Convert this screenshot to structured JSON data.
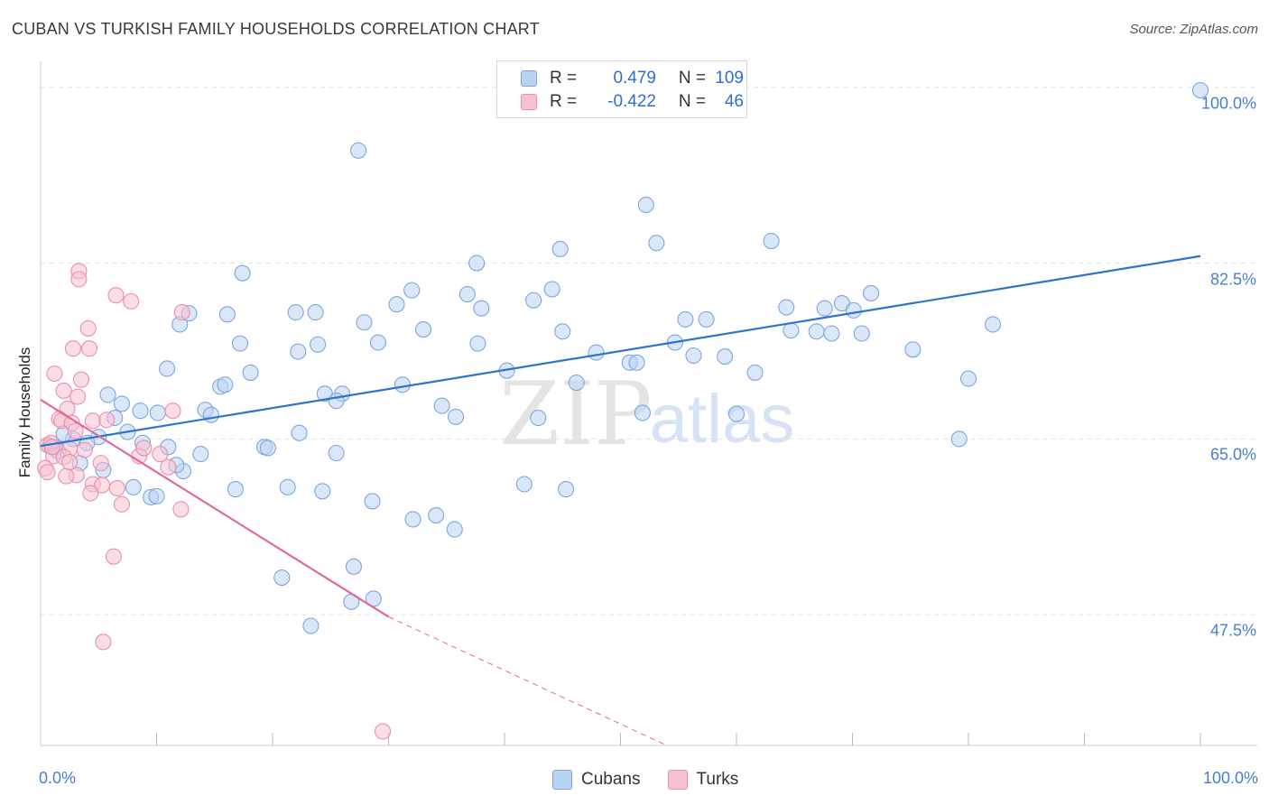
{
  "title": "CUBAN VS TURKISH FAMILY HOUSEHOLDS CORRELATION CHART",
  "source": "Source: ZipAtlas.com",
  "watermark": {
    "zip": "ZIP",
    "atlas": "atlas"
  },
  "legend_box": {
    "rows": [
      {
        "r_label": "R =",
        "r_value": "0.479",
        "n_label": "N =",
        "n_value": "109"
      },
      {
        "r_label": "R =",
        "r_value": "-0.422",
        "n_label": "N =",
        "n_value": "46"
      }
    ]
  },
  "colors": {
    "cubans_fill": "#b9d3f3",
    "cubans_stroke": "#7ea6dd",
    "cubans_line": "#2e73cc",
    "turks_fill": "#f7c1d2",
    "turks_stroke": "#e98fad",
    "turks_line": "#e06a96",
    "axis_text": "#4a7fd0",
    "grid": "#e3e3e3"
  },
  "chart_data": {
    "type": "scatter",
    "title": "CUBAN VS TURKISH FAMILY HOUSEHOLDS CORRELATION CHART",
    "xlabel": "",
    "ylabel": "Family Households",
    "xlim": [
      0,
      100
    ],
    "ylim": [
      34.5,
      101.5
    ],
    "x_tick_labels": [
      "0.0%",
      "100.0%"
    ],
    "y_ticks": [
      47.5,
      65.0,
      82.5,
      100.0
    ],
    "y_tick_labels": [
      "47.5%",
      "65.0%",
      "82.5%",
      "100.0%"
    ],
    "grid": true,
    "legend_position": "top-center and bottom-center",
    "series": [
      {
        "name": "Cubans",
        "R": 0.479,
        "N": 109,
        "trend": {
          "x0": 0,
          "y0": 64.3,
          "x1": 100,
          "y1": 83.2
        },
        "points": [
          [
            100,
            99.7
          ],
          [
            27.4,
            93.7
          ],
          [
            52.2,
            88.3
          ],
          [
            53.1,
            84.5
          ],
          [
            63.0,
            84.7
          ],
          [
            44.8,
            83.9
          ],
          [
            37.6,
            82.5
          ],
          [
            17.4,
            81.5
          ],
          [
            32.0,
            79.8
          ],
          [
            36.8,
            79.4
          ],
          [
            44.1,
            79.9
          ],
          [
            42.5,
            78.8
          ],
          [
            30.7,
            78.4
          ],
          [
            38.0,
            78.0
          ],
          [
            23.7,
            77.6
          ],
          [
            22.0,
            77.6
          ],
          [
            16.1,
            77.4
          ],
          [
            12.8,
            77.5
          ],
          [
            12.0,
            76.4
          ],
          [
            27.9,
            76.6
          ],
          [
            55.6,
            76.9
          ],
          [
            57.4,
            76.9
          ],
          [
            64.3,
            78.1
          ],
          [
            67.6,
            78.0
          ],
          [
            69.1,
            78.5
          ],
          [
            70.1,
            77.8
          ],
          [
            71.6,
            79.5
          ],
          [
            33.0,
            75.9
          ],
          [
            45.0,
            75.7
          ],
          [
            64.7,
            75.8
          ],
          [
            66.9,
            75.7
          ],
          [
            68.2,
            75.5
          ],
          [
            70.8,
            75.5
          ],
          [
            82.1,
            76.4
          ],
          [
            17.2,
            74.5
          ],
          [
            22.2,
            73.7
          ],
          [
            23.9,
            74.4
          ],
          [
            29.1,
            74.6
          ],
          [
            37.7,
            74.5
          ],
          [
            54.7,
            74.6
          ],
          [
            56.3,
            73.3
          ],
          [
            47.9,
            73.6
          ],
          [
            50.8,
            72.6
          ],
          [
            59.0,
            73.2
          ],
          [
            75.2,
            73.9
          ],
          [
            10.9,
            72.0
          ],
          [
            18.1,
            71.6
          ],
          [
            40.2,
            71.8
          ],
          [
            51.4,
            72.6
          ],
          [
            61.6,
            71.6
          ],
          [
            80.0,
            71.0
          ],
          [
            15.5,
            70.2
          ],
          [
            15.9,
            70.4
          ],
          [
            24.5,
            69.5
          ],
          [
            26.0,
            69.5
          ],
          [
            31.2,
            70.4
          ],
          [
            46.2,
            70.6
          ],
          [
            5.8,
            69.4
          ],
          [
            7.0,
            68.5
          ],
          [
            25.5,
            68.8
          ],
          [
            34.6,
            68.3
          ],
          [
            8.6,
            67.8
          ],
          [
            10.1,
            67.6
          ],
          [
            14.2,
            67.9
          ],
          [
            14.7,
            67.4
          ],
          [
            6.4,
            67.1
          ],
          [
            35.8,
            67.2
          ],
          [
            42.9,
            67.1
          ],
          [
            51.9,
            67.6
          ],
          [
            60.0,
            67.5
          ],
          [
            7.5,
            65.7
          ],
          [
            5.0,
            65.2
          ],
          [
            4.0,
            64.6
          ],
          [
            2.8,
            65.0
          ],
          [
            0.8,
            64.3
          ],
          [
            1.3,
            64.2
          ],
          [
            2.0,
            65.5
          ],
          [
            1.5,
            63.8
          ],
          [
            8.8,
            64.6
          ],
          [
            11.0,
            64.2
          ],
          [
            19.3,
            64.2
          ],
          [
            19.6,
            64.1
          ],
          [
            22.3,
            65.6
          ],
          [
            25.5,
            63.6
          ],
          [
            13.8,
            63.5
          ],
          [
            3.4,
            62.6
          ],
          [
            5.4,
            61.9
          ],
          [
            12.3,
            61.8
          ],
          [
            11.7,
            62.4
          ],
          [
            79.2,
            65.0
          ],
          [
            8.0,
            60.2
          ],
          [
            16.8,
            60.0
          ],
          [
            21.3,
            60.2
          ],
          [
            24.3,
            59.8
          ],
          [
            41.7,
            60.5
          ],
          [
            45.3,
            60.0
          ],
          [
            9.5,
            59.2
          ],
          [
            10.0,
            59.3
          ],
          [
            28.6,
            58.8
          ],
          [
            32.1,
            57.0
          ],
          [
            34.1,
            57.4
          ],
          [
            35.7,
            56.0
          ],
          [
            27.0,
            52.3
          ],
          [
            20.8,
            51.2
          ],
          [
            26.8,
            48.8
          ],
          [
            28.7,
            49.1
          ],
          [
            23.3,
            46.4
          ]
        ]
      },
      {
        "name": "Turks",
        "R": -0.422,
        "N": 46,
        "trend": {
          "x0": 0,
          "y0": 68.9,
          "x1": 30.0,
          "y1": 47.3,
          "dash_x1": 54.0,
          "dash_y1": 34.5
        },
        "points": [
          [
            3.3,
            81.7
          ],
          [
            3.3,
            80.9
          ],
          [
            6.5,
            79.3
          ],
          [
            7.8,
            78.7
          ],
          [
            12.2,
            77.6
          ],
          [
            4.1,
            76.0
          ],
          [
            2.8,
            74.0
          ],
          [
            4.2,
            74.0
          ],
          [
            1.2,
            71.5
          ],
          [
            3.5,
            70.9
          ],
          [
            2.0,
            69.8
          ],
          [
            3.2,
            69.2
          ],
          [
            2.3,
            68.0
          ],
          [
            11.4,
            67.8
          ],
          [
            1.6,
            67.0
          ],
          [
            1.8,
            66.8
          ],
          [
            2.7,
            66.6
          ],
          [
            4.5,
            66.8
          ],
          [
            5.7,
            66.9
          ],
          [
            3.0,
            65.8
          ],
          [
            0.6,
            64.4
          ],
          [
            0.9,
            64.6
          ],
          [
            2.5,
            64.0
          ],
          [
            3.8,
            63.9
          ],
          [
            1.1,
            63.3
          ],
          [
            2.0,
            63.2
          ],
          [
            8.5,
            63.3
          ],
          [
            10.3,
            63.5
          ],
          [
            5.2,
            62.6
          ],
          [
            0.4,
            62.1
          ],
          [
            0.6,
            61.7
          ],
          [
            3.1,
            61.4
          ],
          [
            2.2,
            61.3
          ],
          [
            11.0,
            62.2
          ],
          [
            4.5,
            60.5
          ],
          [
            5.3,
            60.4
          ],
          [
            6.6,
            60.1
          ],
          [
            4.3,
            59.6
          ],
          [
            7.0,
            58.5
          ],
          [
            12.1,
            58.0
          ],
          [
            6.3,
            53.3
          ],
          [
            5.4,
            44.8
          ],
          [
            29.5,
            35.9
          ],
          [
            1.0,
            64.2
          ],
          [
            8.9,
            64.1
          ],
          [
            2.5,
            62.7
          ]
        ]
      }
    ]
  },
  "bottom_legend": [
    {
      "label": "Cubans"
    },
    {
      "label": "Turks"
    }
  ]
}
